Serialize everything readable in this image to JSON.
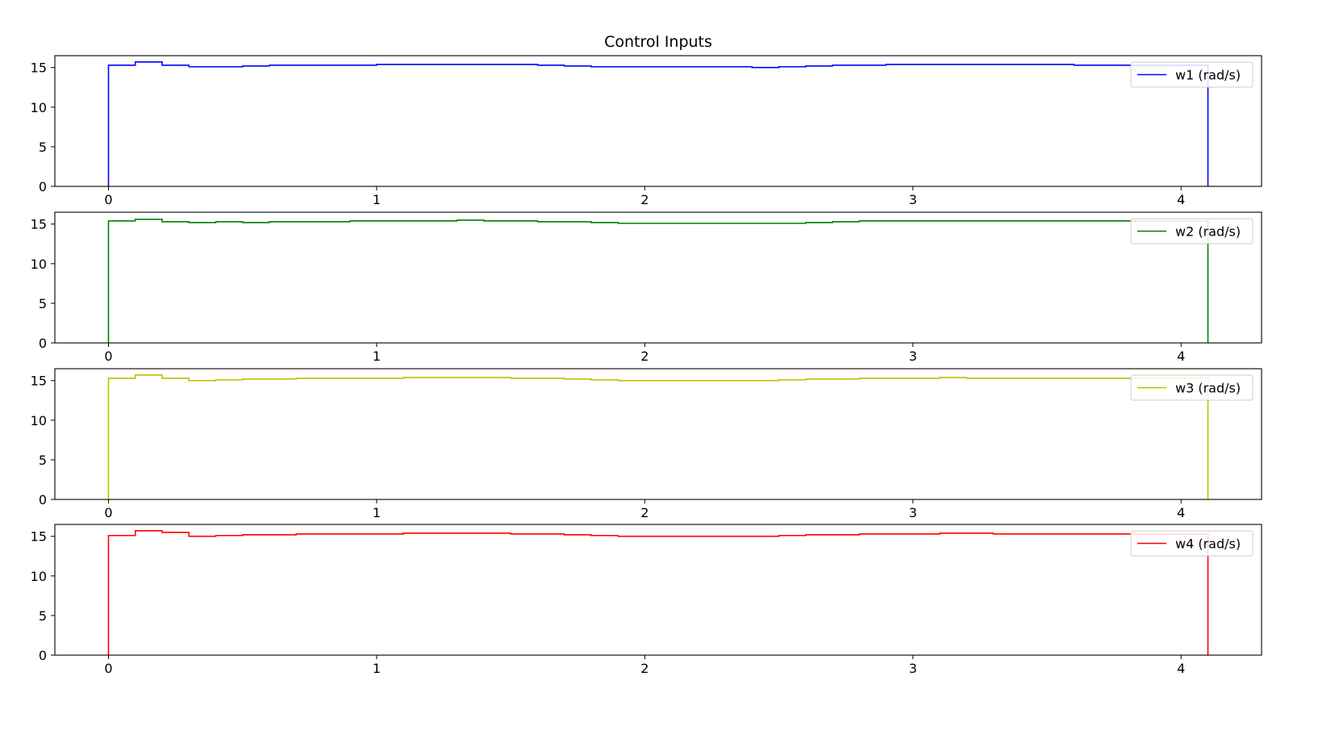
{
  "figure": {
    "title": "Control Inputs"
  },
  "chart_data": [
    {
      "type": "line",
      "drawstyle": "steps-post",
      "title": "Control Inputs",
      "xlabel": "",
      "ylabel": "",
      "xlim": [
        -0.2,
        4.3
      ],
      "ylim": [
        0,
        16.5
      ],
      "xticks": [
        0,
        1,
        2,
        3,
        4
      ],
      "yticks": [
        0,
        5,
        10,
        15
      ],
      "grid": false,
      "legend_position": "upper right",
      "series": [
        {
          "name": "w1 (rad/s)",
          "color": "#0000ff",
          "x": [
            0,
            0.1,
            0.2,
            0.3,
            0.5,
            0.6,
            1.0,
            1.6,
            1.7,
            1.8,
            2.4,
            2.5,
            2.6,
            2.7,
            2.9,
            3.6,
            4.0,
            4.1
          ],
          "y": [
            15.3,
            15.7,
            15.3,
            15.1,
            15.2,
            15.3,
            15.4,
            15.3,
            15.2,
            15.1,
            15.0,
            15.1,
            15.2,
            15.3,
            15.4,
            15.3,
            15.3,
            0
          ]
        },
        {
          "name": "w2 (rad/s)",
          "color": "#008000",
          "x": [
            0,
            0.1,
            0.2,
            0.3,
            0.4,
            0.5,
            0.6,
            0.9,
            1.3,
            1.4,
            1.6,
            1.8,
            1.9,
            2.6,
            2.7,
            2.8,
            3.0,
            4.0,
            4.1
          ],
          "y": [
            15.4,
            15.6,
            15.3,
            15.2,
            15.3,
            15.2,
            15.3,
            15.4,
            15.5,
            15.4,
            15.3,
            15.2,
            15.1,
            15.2,
            15.3,
            15.4,
            15.4,
            15.4,
            0
          ]
        },
        {
          "name": "w3 (rad/s)",
          "color": "#bfbf00",
          "x": [
            0,
            0.1,
            0.2,
            0.3,
            0.4,
            0.5,
            0.7,
            1.1,
            1.5,
            1.7,
            1.8,
            1.9,
            2.5,
            2.6,
            2.8,
            3.1,
            3.2,
            4.0,
            4.1
          ],
          "y": [
            15.3,
            15.7,
            15.3,
            15.0,
            15.1,
            15.2,
            15.3,
            15.4,
            15.3,
            15.2,
            15.1,
            15.0,
            15.1,
            15.2,
            15.3,
            15.4,
            15.3,
            15.3,
            0
          ]
        },
        {
          "name": "w4 (rad/s)",
          "color": "#ff0000",
          "x": [
            0,
            0.1,
            0.2,
            0.3,
            0.4,
            0.5,
            0.7,
            1.1,
            1.5,
            1.7,
            1.8,
            1.9,
            2.5,
            2.6,
            2.8,
            3.1,
            3.3,
            4.0,
            4.1
          ],
          "y": [
            15.1,
            15.7,
            15.5,
            15.0,
            15.1,
            15.2,
            15.3,
            15.4,
            15.3,
            15.2,
            15.1,
            15.0,
            15.1,
            15.2,
            15.3,
            15.4,
            15.3,
            15.3,
            0
          ]
        }
      ]
    }
  ]
}
